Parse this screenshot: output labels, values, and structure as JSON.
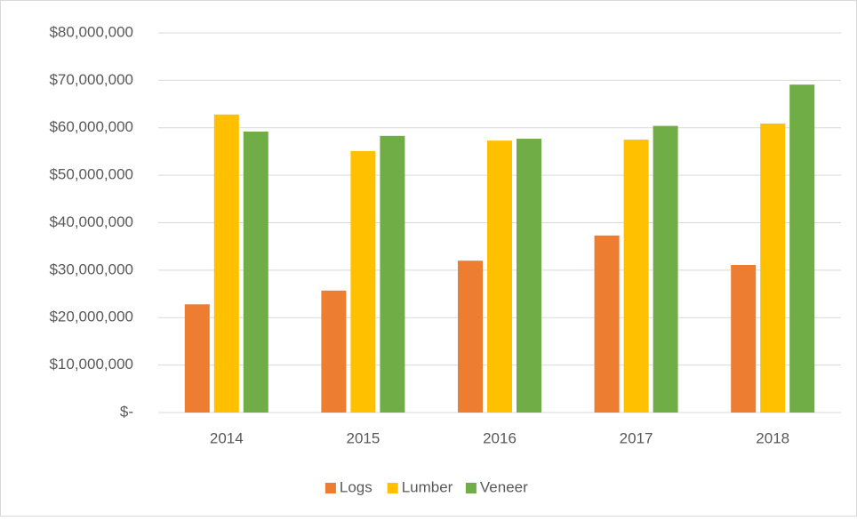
{
  "chart_data": {
    "type": "bar",
    "categories": [
      "2014",
      "2015",
      "2016",
      "2017",
      "2018"
    ],
    "series": [
      {
        "name": "Logs",
        "color": "#ed7d31",
        "values": [
          22800000,
          25700000,
          32000000,
          37300000,
          31100000
        ]
      },
      {
        "name": "Lumber",
        "color": "#ffc000",
        "values": [
          62800000,
          55100000,
          57300000,
          57500000,
          60900000
        ]
      },
      {
        "name": "Veneer",
        "color": "#70ad47",
        "values": [
          59200000,
          58300000,
          57700000,
          60400000,
          69100000
        ]
      }
    ],
    "ylim": [
      0,
      80000000
    ],
    "yticks": [
      {
        "value": 0,
        "label": "$-"
      },
      {
        "value": 10000000,
        "label": "$10,000,000"
      },
      {
        "value": 20000000,
        "label": "$20,000,000"
      },
      {
        "value": 30000000,
        "label": "$30,000,000"
      },
      {
        "value": 40000000,
        "label": "$40,000,000"
      },
      {
        "value": 50000000,
        "label": "$50,000,000"
      },
      {
        "value": 60000000,
        "label": "$60,000,000"
      },
      {
        "value": 70000000,
        "label": "$70,000,000"
      },
      {
        "value": 80000000,
        "label": "$80,000,000"
      }
    ],
    "grid": true,
    "legend": "bottom"
  }
}
